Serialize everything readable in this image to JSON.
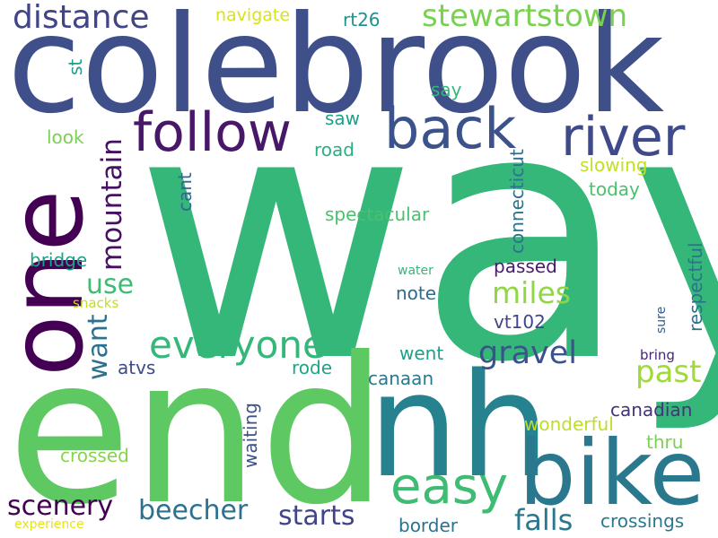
{
  "words": [
    {
      "text": "way",
      "color": "#35b779"
    },
    {
      "text": "colebrook",
      "color": "#3e4f8a"
    },
    {
      "text": "end",
      "color": "#5ec962"
    },
    {
      "text": "one",
      "color": "#440154"
    },
    {
      "text": "nh",
      "color": "#26828e"
    },
    {
      "text": "bike",
      "color": "#2a788e"
    },
    {
      "text": "follow",
      "color": "#481769"
    },
    {
      "text": "back",
      "color": "#3b528b"
    },
    {
      "text": "river",
      "color": "#3e4a89"
    },
    {
      "text": "easy",
      "color": "#3fbc73"
    },
    {
      "text": "everyone",
      "color": "#35b779"
    },
    {
      "text": "distance",
      "color": "#414487"
    },
    {
      "text": "stewartstown",
      "color": "#7ad151"
    },
    {
      "text": "mountain",
      "color": "#471063"
    },
    {
      "text": "miles",
      "color": "#90d743"
    },
    {
      "text": "gravel",
      "color": "#3b528b"
    },
    {
      "text": "past",
      "color": "#a0da39"
    },
    {
      "text": "use",
      "color": "#3fbc73"
    },
    {
      "text": "want",
      "color": "#2c728e"
    },
    {
      "text": "scenery",
      "color": "#440154"
    },
    {
      "text": "beecher",
      "color": "#2c728e"
    },
    {
      "text": "starts",
      "color": "#414487"
    },
    {
      "text": "falls",
      "color": "#2a788e"
    },
    {
      "text": "navigate",
      "color": "#d8e219"
    },
    {
      "text": "rt26",
      "color": "#21918c"
    },
    {
      "text": "st",
      "color": "#1f9e89"
    },
    {
      "text": "say",
      "color": "#35b779"
    },
    {
      "text": "saw",
      "color": "#1f9e89"
    },
    {
      "text": "look",
      "color": "#7ad151"
    },
    {
      "text": "road",
      "color": "#2ab07f"
    },
    {
      "text": "connecticut",
      "color": "#2c728e"
    },
    {
      "text": "slowing",
      "color": "#c2df23"
    },
    {
      "text": "cant",
      "color": "#31688e"
    },
    {
      "text": "today",
      "color": "#4ac16d"
    },
    {
      "text": "spectacular",
      "color": "#4ac16d"
    },
    {
      "text": "bridge",
      "color": "#1fa187"
    },
    {
      "text": "passed",
      "color": "#481a6c"
    },
    {
      "text": "respectful",
      "color": "#2c728e"
    },
    {
      "text": "water",
      "color": "#35b779"
    },
    {
      "text": "note",
      "color": "#31688e"
    },
    {
      "text": "snacks",
      "color": "#bddf26"
    },
    {
      "text": "sure",
      "color": "#355f8d"
    },
    {
      "text": "vt102",
      "color": "#404688"
    },
    {
      "text": "atvs",
      "color": "#3e4a89"
    },
    {
      "text": "went",
      "color": "#1f9e89"
    },
    {
      "text": "rode",
      "color": "#20a386"
    },
    {
      "text": "bring",
      "color": "#482475"
    },
    {
      "text": "canaan",
      "color": "#2a788e"
    },
    {
      "text": "waiting",
      "color": "#3b528b"
    },
    {
      "text": "canadian",
      "color": "#46327e"
    },
    {
      "text": "wonderful",
      "color": "#bddf26"
    },
    {
      "text": "thru",
      "color": "#7ad151"
    },
    {
      "text": "crossed",
      "color": "#86d549"
    },
    {
      "text": "crossings",
      "color": "#2a788e"
    },
    {
      "text": "border",
      "color": "#2c728e"
    },
    {
      "text": "experience",
      "color": "#e5e419"
    }
  ]
}
